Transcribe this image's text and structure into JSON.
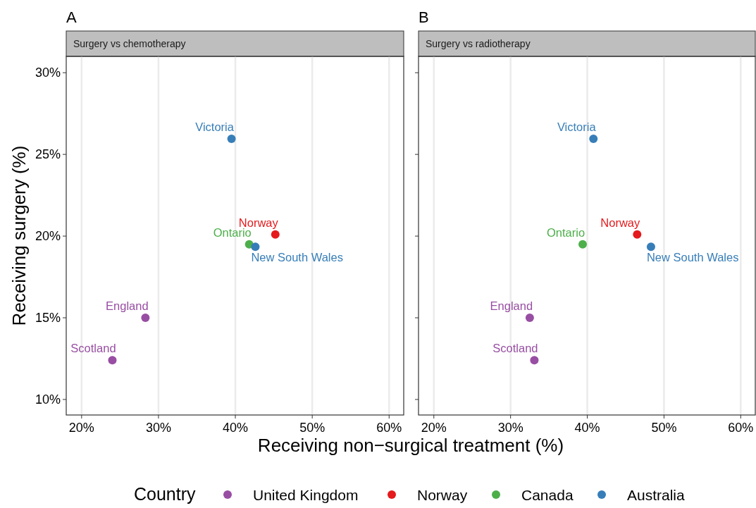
{
  "chart_data": [
    {
      "type": "scatter",
      "title": "A",
      "subtitle": "Surgery vs chemotherapy",
      "xlabel": "Receiving non−surgical treatment (%)",
      "ylabel": "Receiving surgery (%)",
      "legend_title": "Country",
      "legend": "bottom",
      "grid": "x",
      "marker": "circle",
      "xlim": [
        18,
        61.9
      ],
      "ylim": [
        9.05,
        31
      ],
      "xticks": [
        {
          "value": 20,
          "label": "20%"
        },
        {
          "value": 30,
          "label": "30%"
        },
        {
          "value": 40,
          "label": "40%"
        },
        {
          "value": 50,
          "label": "50%"
        },
        {
          "value": 60,
          "label": "60%"
        }
      ],
      "yticks": [
        {
          "value": 10,
          "label": "10%"
        },
        {
          "value": 15,
          "label": "15%"
        },
        {
          "value": 20,
          "label": "20%"
        },
        {
          "value": 25,
          "label": "25%"
        },
        {
          "value": 30,
          "label": "30%"
        }
      ],
      "series": [
        {
          "name": "United Kingdom",
          "color": "#984ea3",
          "x": [
            28.3,
            24.0
          ],
          "values": [
            15.0,
            12.4
          ]
        },
        {
          "name": "Norway",
          "color": "#e41a1c",
          "x": [
            45.2
          ],
          "values": [
            20.1
          ]
        },
        {
          "name": "Canada",
          "color": "#4daf4a",
          "x": [
            41.8
          ],
          "values": [
            19.5
          ]
        },
        {
          "name": "Australia",
          "color": "#377eb8",
          "x": [
            39.5,
            42.6
          ],
          "values": [
            25.95,
            19.35
          ]
        }
      ],
      "annotations": [
        {
          "text": "Victoria",
          "x": 39.5,
          "y": 25.95
        },
        {
          "text": "Norway",
          "x": 45.2,
          "y": 20.1
        },
        {
          "text": "Ontario",
          "x": 41.8,
          "y": 19.5
        },
        {
          "text": "New South Wales",
          "x": 42.6,
          "y": 19.35
        },
        {
          "text": "England",
          "x": 28.3,
          "y": 15.0
        },
        {
          "text": "Scotland",
          "x": 24.0,
          "y": 12.4
        }
      ]
    },
    {
      "type": "scatter",
      "title": "B",
      "subtitle": "Surgery vs radiotherapy",
      "grid": "x",
      "marker": "circle",
      "tick_labels": "x",
      "xlim": [
        18,
        61.9
      ],
      "ylim": [
        9.05,
        31
      ],
      "xticks": [
        {
          "value": 20,
          "label": "20%"
        },
        {
          "value": 30,
          "label": "30%"
        },
        {
          "value": 40,
          "label": "40%"
        },
        {
          "value": 50,
          "label": "50%"
        },
        {
          "value": 60,
          "label": "60%"
        }
      ],
      "yticks": [
        {
          "value": 10,
          "label": null
        },
        {
          "value": 15,
          "label": null
        },
        {
          "value": 20,
          "label": null
        },
        {
          "value": 25,
          "label": null
        },
        {
          "value": 30,
          "label": null
        }
      ],
      "series": [
        {
          "color": "#984ea3",
          "x": [
            32.5,
            33.1
          ],
          "values": [
            15.0,
            12.4
          ]
        },
        {
          "color": "#e41a1c",
          "x": [
            46.5
          ],
          "values": [
            20.1
          ]
        },
        {
          "color": "#4daf4a",
          "x": [
            39.4
          ],
          "values": [
            19.5
          ]
        },
        {
          "color": "#377eb8",
          "x": [
            40.8,
            48.3
          ],
          "values": [
            25.95,
            19.35
          ]
        }
      ],
      "annotations": [
        {
          "text": "Victoria",
          "x": 40.8,
          "y": 25.95
        },
        {
          "text": "Norway",
          "x": 46.5,
          "y": 20.1
        },
        {
          "text": "Ontario",
          "x": 39.4,
          "y": 19.5
        },
        {
          "text": "New South Wales",
          "x": 48.3,
          "y": 19.35
        },
        {
          "text": "England",
          "x": 32.5,
          "y": 15.0
        },
        {
          "text": "Scotland",
          "x": 33.1,
          "y": 12.4
        }
      ]
    }
  ]
}
